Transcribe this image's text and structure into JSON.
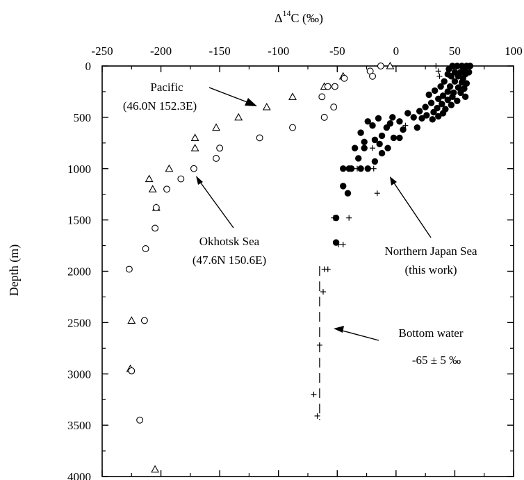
{
  "chart_data": {
    "type": "scatter",
    "title": "",
    "xlabel": "Δ14C (‰)",
    "xlabel_parts": {
      "prefix": "Δ",
      "sup": "14",
      "suffix": "C (‰)"
    },
    "ylabel": "Depth (m)",
    "xlim": [
      -250,
      100
    ],
    "ylim": [
      0,
      4000
    ],
    "y_inverted": true,
    "x_axis_position": "top",
    "grid": false,
    "x_ticks": [
      -250,
      -200,
      -150,
      -100,
      -50,
      0,
      50,
      100
    ],
    "y_ticks": [
      0,
      500,
      1000,
      1500,
      2000,
      2500,
      3000,
      3500,
      4000
    ],
    "series": [
      {
        "marker": "open-triangle",
        "points": [
          [
            -5,
            0
          ],
          [
            -45,
            100
          ],
          [
            -61,
            200
          ],
          [
            -88,
            300
          ],
          [
            -110,
            400
          ],
          [
            -134,
            500
          ],
          [
            -153,
            600
          ],
          [
            -171,
            700
          ],
          [
            -171,
            800
          ],
          [
            -193,
            1000
          ],
          [
            -210,
            1100
          ],
          [
            -207,
            1200
          ],
          [
            -204,
            1380
          ],
          [
            -225,
            2480
          ],
          [
            -226,
            2950
          ],
          [
            -205,
            3930
          ]
        ]
      },
      {
        "marker": "open-circle",
        "points": [
          [
            -13,
            0
          ],
          [
            -22,
            50
          ],
          [
            -20,
            100
          ],
          [
            -44,
            120
          ],
          [
            -52,
            200
          ],
          [
            -58,
            200
          ],
          [
            -63,
            300
          ],
          [
            -53,
            400
          ],
          [
            -61,
            500
          ],
          [
            -88,
            600
          ],
          [
            -116,
            700
          ],
          [
            -150,
            800
          ],
          [
            -153,
            900
          ],
          [
            -172,
            1000
          ],
          [
            -183,
            1100
          ],
          [
            -195,
            1200
          ],
          [
            -204,
            1380
          ],
          [
            -205,
            1580
          ],
          [
            -213,
            1780
          ],
          [
            -227,
            1980
          ],
          [
            -214,
            2480
          ],
          [
            -225,
            2970
          ],
          [
            -218,
            3450
          ]
        ]
      },
      {
        "marker": "filled-circle",
        "points": [
          [
            48,
            0
          ],
          [
            52,
            0
          ],
          [
            56,
            0
          ],
          [
            60,
            0
          ],
          [
            63,
            0
          ],
          [
            45,
            30
          ],
          [
            58,
            30
          ],
          [
            50,
            60
          ],
          [
            55,
            60
          ],
          [
            62,
            60
          ],
          [
            44,
            80
          ],
          [
            59,
            80
          ],
          [
            47,
            100
          ],
          [
            53,
            100
          ],
          [
            57,
            120
          ],
          [
            41,
            150
          ],
          [
            50,
            150
          ],
          [
            56,
            160
          ],
          [
            60,
            170
          ],
          [
            38,
            200
          ],
          [
            46,
            200
          ],
          [
            53,
            210
          ],
          [
            58,
            220
          ],
          [
            33,
            240
          ],
          [
            44,
            250
          ],
          [
            49,
            260
          ],
          [
            55,
            260
          ],
          [
            28,
            280
          ],
          [
            40,
            290
          ],
          [
            48,
            300
          ],
          [
            59,
            300
          ],
          [
            36,
            320
          ],
          [
            44,
            330
          ],
          [
            52,
            340
          ],
          [
            30,
            360
          ],
          [
            39,
            370
          ],
          [
            47,
            380
          ],
          [
            25,
            400
          ],
          [
            35,
            410
          ],
          [
            42,
            420
          ],
          [
            20,
            440
          ],
          [
            32,
            450
          ],
          [
            40,
            460
          ],
          [
            10,
            460
          ],
          [
            26,
            480
          ],
          [
            36,
            490
          ],
          [
            15,
            500
          ],
          [
            22,
            510
          ],
          [
            31,
            520
          ],
          [
            -3,
            500
          ],
          [
            -15,
            510
          ],
          [
            3,
            540
          ],
          [
            -24,
            540
          ],
          [
            -5,
            560
          ],
          [
            -20,
            580
          ],
          [
            18,
            600
          ],
          [
            -8,
            600
          ],
          [
            6,
            620
          ],
          [
            -30,
            650
          ],
          [
            -12,
            680
          ],
          [
            -2,
            700
          ],
          [
            3,
            700
          ],
          [
            -18,
            720
          ],
          [
            -27,
            740
          ],
          [
            -14,
            760
          ],
          [
            -35,
            800
          ],
          [
            -27,
            800
          ],
          [
            -7,
            800
          ],
          [
            -12,
            850
          ],
          [
            -32,
            900
          ],
          [
            -18,
            930
          ],
          [
            -40,
            1000
          ],
          [
            -45,
            1000
          ],
          [
            -38,
            1000
          ],
          [
            -30,
            1000
          ],
          [
            -24,
            1000
          ],
          [
            -45,
            1170
          ],
          [
            -41,
            1240
          ],
          [
            -51,
            1480
          ],
          [
            -51,
            1720
          ]
        ]
      },
      {
        "marker": "plus",
        "points": [
          [
            34,
            0
          ],
          [
            36,
            50
          ],
          [
            37,
            100
          ],
          [
            8,
            580
          ],
          [
            -20,
            800
          ],
          [
            -33,
            1000
          ],
          [
            -19,
            1000
          ],
          [
            -16,
            1240
          ],
          [
            -40,
            1480
          ],
          [
            -53,
            1480
          ],
          [
            -45,
            1740
          ],
          [
            -49,
            1740
          ],
          [
            -58,
            1980
          ],
          [
            -61,
            1980
          ],
          [
            -62,
            2200
          ],
          [
            -65,
            2720
          ],
          [
            -70,
            3200
          ],
          [
            -67,
            3410
          ]
        ]
      }
    ],
    "reference_line": {
      "x": -65,
      "y_from": 1950,
      "y_to": 3450,
      "style": "dashed",
      "value": "-65 ± 5 ‰"
    },
    "annotations": [
      {
        "lines": [
          "Pacific",
          "(46.0N 152.3E)"
        ],
        "anchor": [
          -110,
          200
        ],
        "arrow_from": [
          -118,
          160
        ],
        "arrow_to": [
          -118,
          370
        ]
      },
      {
        "lines": [
          "Okhotsk Sea",
          "(47.6N 150.6E)"
        ],
        "anchor": [
          -120,
          1790
        ]
      },
      {
        "lines": [
          "Northern Japan Sea",
          "(this work)"
        ],
        "anchor": [
          55,
          1880
        ]
      },
      {
        "lines": [
          "Bottom water",
          "-65 ± 5 ‰"
        ],
        "anchor": [
          40,
          2500
        ]
      }
    ]
  }
}
